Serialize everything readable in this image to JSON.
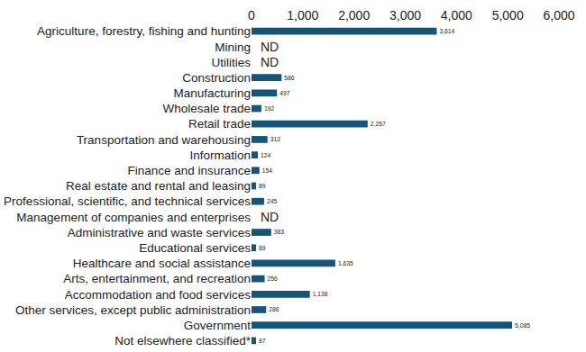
{
  "chart_data": {
    "type": "bar",
    "orientation": "horizontal",
    "categories": [
      "Agriculture, forestry, fishing and hunting",
      "Mining",
      "Utilities",
      "Construction",
      "Manufacturing",
      "Wholesale trade",
      "Retail trade",
      "Transportation and warehousing",
      "Information",
      "Finance and insurance",
      "Real estate and rental and leasing",
      "Professional, scientific, and technical services",
      "Management of companies and enterprises",
      "Administrative and waste services",
      "Educational services",
      "Healthcare and social assistance",
      "Arts, entertainment, and recreation",
      "Accommodation and food services",
      "Other services, except public administration",
      "Government",
      "Not elsewhere classified*"
    ],
    "values": [
      3614,
      null,
      null,
      586,
      497,
      192,
      2267,
      312,
      124,
      154,
      89,
      245,
      null,
      383,
      89,
      1635,
      256,
      1138,
      286,
      5085,
      87
    ],
    "value_labels": [
      "3,614",
      "ND",
      "ND",
      "586",
      "497",
      "192",
      "2,267",
      "312",
      "124",
      "154",
      "89",
      "245",
      "ND",
      "383",
      "89",
      "1,635",
      "256",
      "1,138",
      "286",
      "5,085",
      "87"
    ],
    "color": "#175479",
    "xlim": [
      0,
      6000
    ],
    "xticks": [
      0,
      {
        "value": 1000,
        "label": "1,000"
      },
      {
        "value": 2000,
        "label": "2,000"
      },
      {
        "value": 3000,
        "label": "3,000"
      },
      {
        "value": 4000,
        "label": "4,000"
      },
      {
        "value": 5000,
        "label": "5,000"
      },
      {
        "value": 6000,
        "label": "6,000"
      }
    ],
    "grid": false,
    "data_labels": true
  }
}
